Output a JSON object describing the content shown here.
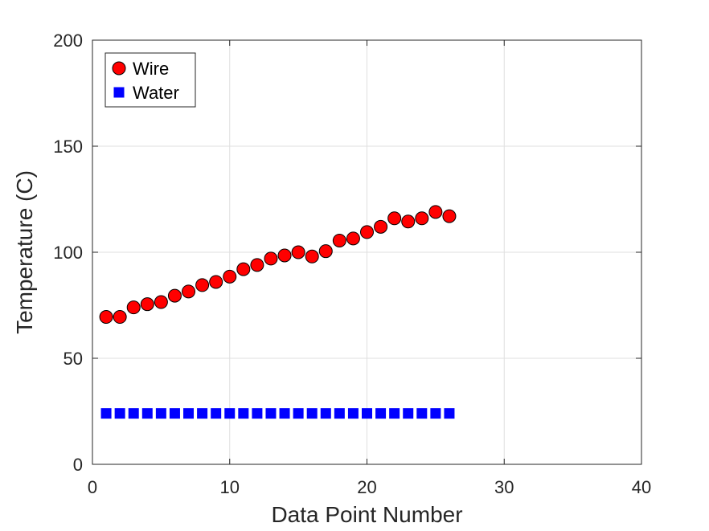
{
  "chart_data": {
    "type": "scatter",
    "title": "",
    "xlabel": "Data Point Number",
    "ylabel": "Temperature (C)",
    "xlim": [
      0,
      40
    ],
    "ylim": [
      0,
      200
    ],
    "xticks": [
      0,
      10,
      20,
      30,
      40
    ],
    "yticks": [
      0,
      50,
      100,
      150,
      200
    ],
    "xtick_labels": [
      "0",
      "10",
      "20",
      "30",
      "40"
    ],
    "ytick_labels": [
      "0",
      "50",
      "100",
      "150",
      "200"
    ],
    "grid": true,
    "legend_position": "top-left",
    "series": [
      {
        "name": "Wire",
        "marker": "circle",
        "color": "#ff0000",
        "x": [
          1,
          2,
          3,
          4,
          5,
          6,
          7,
          8,
          9,
          10,
          11,
          12,
          13,
          14,
          15,
          16,
          17,
          18,
          19,
          20,
          21,
          22,
          23,
          24,
          25,
          26
        ],
        "y": [
          69.5,
          69.5,
          74,
          75.5,
          76.5,
          79.5,
          81.5,
          84.5,
          86,
          88.5,
          92,
          94,
          97,
          98.5,
          100,
          98,
          100.5,
          105.5,
          106.5,
          109.5,
          112,
          116,
          114.5,
          116,
          119,
          117
        ]
      },
      {
        "name": "Water",
        "marker": "square",
        "color": "#0000ff",
        "x": [
          1,
          2,
          3,
          4,
          5,
          6,
          7,
          8,
          9,
          10,
          11,
          12,
          13,
          14,
          15,
          16,
          17,
          18,
          19,
          20,
          21,
          22,
          23,
          24,
          25,
          26
        ],
        "y": [
          24,
          24,
          24,
          24,
          24,
          24,
          24,
          24,
          24,
          24,
          24,
          24,
          24,
          24,
          24,
          24,
          24,
          24,
          24,
          24,
          24,
          24,
          24,
          24,
          24,
          24
        ]
      }
    ]
  }
}
